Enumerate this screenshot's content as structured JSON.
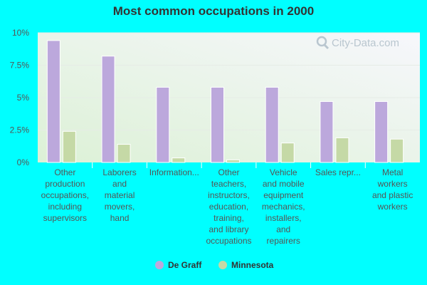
{
  "chart_data": {
    "type": "bar",
    "title": "Most common occupations in 2000",
    "xlabel": "",
    "ylabel": "",
    "ylim": [
      0,
      10
    ],
    "y_ticks": [
      "0%",
      "2.5%",
      "5%",
      "7.5%",
      "10%"
    ],
    "y_tick_values": [
      0,
      2.5,
      5,
      7.5,
      10
    ],
    "categories": [
      "Other production occupations, including supervisors",
      "Laborers and material movers, hand",
      "Information...",
      "Other teachers, instructors, education, training, and library occupations",
      "Vehicle and mobile equipment mechanics, installers, and repairers",
      "Sales repr...",
      "Metal workers and plastic workers"
    ],
    "category_lines": [
      [
        "Other",
        "production",
        "occupations,",
        "including",
        "supervisors"
      ],
      [
        "Laborers",
        "and",
        "material",
        "movers,",
        "hand"
      ],
      [
        "Information..."
      ],
      [
        "Other",
        "teachers,",
        "instructors,",
        "education,",
        "training,",
        "and library",
        "occupations"
      ],
      [
        "Vehicle",
        "and mobile",
        "equipment",
        "mechanics,",
        "installers,",
        "and",
        "repairers"
      ],
      [
        "Sales repr..."
      ],
      [
        "Metal",
        "workers",
        "and plastic",
        "workers"
      ]
    ],
    "series": [
      {
        "name": "De Graff",
        "color": "#bca8dc",
        "values": [
          9.4,
          8.2,
          5.8,
          5.8,
          5.8,
          4.7,
          4.7
        ]
      },
      {
        "name": "Minnesota",
        "color": "#c5d9a6",
        "values": [
          2.4,
          1.4,
          0.35,
          0.2,
          1.5,
          1.9,
          1.8
        ]
      }
    ],
    "grid": true,
    "legend_position": "bottom",
    "watermark": "City-Data.com"
  },
  "colors": {
    "background": "#00ffff",
    "plot_gradient_top": "#f7f7fc",
    "plot_gradient_bottom": "#dcf1d6"
  },
  "icons": {
    "watermark_icon": "magnifier-icon"
  }
}
